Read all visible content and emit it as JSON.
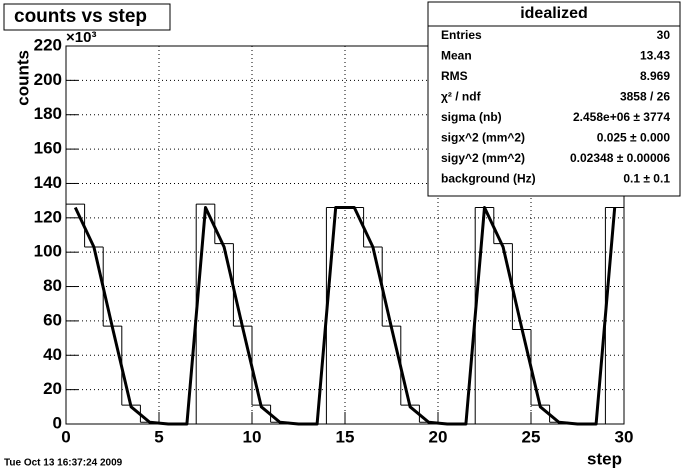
{
  "chart_data": {
    "type": "histogram",
    "title": "counts vs step",
    "x_label": "step",
    "y_label": "counts",
    "y_exponent_label": "×10³",
    "bins": [
      0,
      1,
      2,
      3,
      4,
      5,
      6,
      7,
      8,
      9,
      10,
      11,
      12,
      13,
      14,
      15,
      16,
      17,
      18,
      19,
      20,
      21,
      22,
      23,
      24,
      25,
      26,
      27,
      28,
      29,
      30
    ],
    "values": [
      128,
      103,
      57,
      11,
      1,
      0,
      0,
      128,
      105,
      57,
      11,
      1,
      0,
      0,
      126,
      126,
      103,
      57,
      11,
      1,
      0,
      0,
      126,
      105,
      55,
      11,
      1,
      0,
      0,
      126
    ],
    "fit_values": [
      126,
      103,
      56,
      10,
      1,
      0,
      0,
      126,
      103,
      56,
      10,
      1,
      0,
      0,
      126,
      126,
      103,
      56,
      10,
      1,
      0,
      0,
      126,
      103,
      56,
      10,
      1,
      0,
      0,
      126
    ],
    "color": "#000000",
    "fit_color": "#000000",
    "xlim": [
      0,
      30
    ],
    "ylim": [
      0,
      220
    ],
    "xticks": [
      0,
      5,
      10,
      15,
      20,
      25,
      30
    ],
    "yticks": [
      0,
      20,
      40,
      60,
      80,
      100,
      120,
      140,
      160,
      180,
      200,
      220
    ],
    "grid": true,
    "stats": {
      "title": "idealized",
      "rows": [
        {
          "label": "Entries",
          "value": 30
        },
        {
          "label": "Mean",
          "value": 13.43
        },
        {
          "label": "RMS",
          "value": 8.969
        },
        {
          "label": "χ² / ndf",
          "value": "3858 / 26"
        },
        {
          "label": "sigma (nb)",
          "value": "2.458e+06 ± 3774"
        },
        {
          "label": "sigx^2 (mm^2)",
          "value": "0.025 ± 0.000"
        },
        {
          "label": "sigy^2 (mm^2)",
          "value": "0.02348 ± 0.00006"
        },
        {
          "label": "background (Hz)",
          "value": "0.1 ± 0.1"
        }
      ]
    },
    "footer": "Tue Oct 13 16:37:24 2009"
  }
}
